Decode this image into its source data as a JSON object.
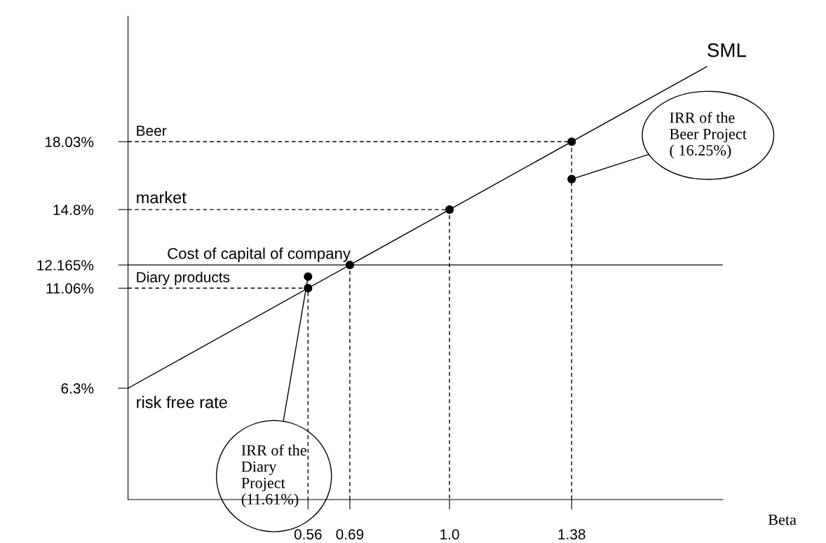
{
  "chart_data": {
    "type": "scatter",
    "xlabel": "Beta",
    "xlim": [
      0,
      1.85
    ],
    "ylim": [
      1,
      24
    ],
    "xticks": [
      0.56,
      0.69,
      {
        "value": 1.0,
        "label": "1.0"
      },
      1.38
    ],
    "yticks": [
      {
        "value": 6.3,
        "label": "6.3%"
      },
      {
        "value": 11.06,
        "label": "11.06%"
      },
      {
        "value": 12.165,
        "label": "12.165%"
      },
      {
        "value": 14.8,
        "label": "14.8%"
      },
      {
        "value": 18.03,
        "label": "18.03%"
      }
    ],
    "grid": false,
    "ref_lines": [
      {
        "axis": "y",
        "value": 12.165,
        "label": "Cost of capital of company",
        "color": "#000000",
        "line_style": "solid"
      }
    ],
    "series": [
      {
        "type": "line",
        "color": "#000000",
        "line_style": "solid",
        "marker": "none",
        "x": [
          0,
          1.8
        ],
        "values": [
          6.3,
          21.6
        ]
      },
      {
        "type": "line",
        "color": "#000000",
        "line_style": "dashed",
        "marker": "none",
        "x": [
          0,
          1.38,
          1.38
        ],
        "values": [
          18.03,
          18.03,
          1
        ]
      },
      {
        "type": "line",
        "color": "#000000",
        "line_style": "dashed",
        "marker": "none",
        "x": [
          0,
          1.0,
          1.0
        ],
        "values": [
          14.8,
          14.8,
          1
        ]
      },
      {
        "type": "line",
        "color": "#000000",
        "line_style": "dashed",
        "marker": "none",
        "x": [
          0.69,
          0.69
        ],
        "values": [
          1,
          12.165
        ]
      },
      {
        "type": "line",
        "color": "#000000",
        "line_style": "dashed",
        "marker": "none",
        "x": [
          0,
          0.56,
          0.56
        ],
        "values": [
          11.06,
          11.06,
          1
        ]
      },
      {
        "color": "#000000",
        "marker": "circle",
        "x": [
          1.38,
          1.0,
          0.69,
          0.56,
          1.38,
          0.56
        ],
        "values": [
          18.03,
          14.8,
          12.165,
          11.06,
          16.25,
          11.61
        ]
      }
    ],
    "annotations": [
      "Beer",
      "market",
      "Diary products",
      "risk free rate",
      "SML",
      "IRR of the\nBeer Project\n( 16.25%)",
      "IRR of the\nDiary\nProject\n(11.61%)"
    ]
  }
}
